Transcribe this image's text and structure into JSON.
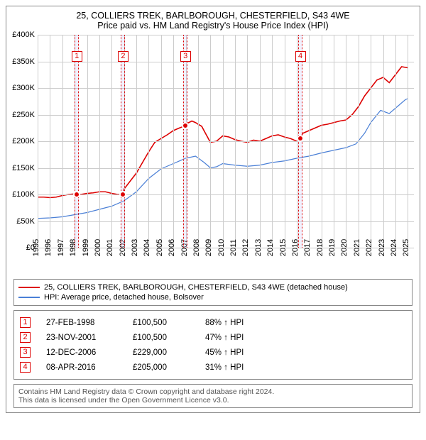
{
  "title": {
    "line1": "25, COLLIERS TREK, BARLBOROUGH, CHESTERFIELD, S43 4WE",
    "line2": "Price paid vs. HM Land Registry's House Price Index (HPI)",
    "fontsize": 12.5
  },
  "chart": {
    "type": "line",
    "background_color": "#ffffff",
    "grid_color": "#cccccc",
    "x": {
      "min": 1995,
      "max": 2025.5,
      "ticks": [
        1995,
        1996,
        1997,
        1998,
        1999,
        2000,
        2001,
        2002,
        2003,
        2004,
        2005,
        2006,
        2007,
        2008,
        2009,
        2010,
        2011,
        2012,
        2013,
        2014,
        2015,
        2016,
        2017,
        2018,
        2019,
        2020,
        2021,
        2022,
        2023,
        2024,
        2025
      ],
      "label_fontsize": 11
    },
    "y": {
      "min": 0,
      "max": 400000,
      "ticks": [
        0,
        50000,
        100000,
        150000,
        200000,
        250000,
        300000,
        350000,
        400000
      ],
      "tick_labels": [
        "£0",
        "£50K",
        "£100K",
        "£150K",
        "£200K",
        "£250K",
        "£300K",
        "£350K",
        "£400K"
      ],
      "label_fontsize": 11
    },
    "series": [
      {
        "name": "25, COLLIERS TREK, BARLBOROUGH, CHESTERFIELD, S43 4WE (detached house)",
        "color": "#dd0000",
        "line_width": 1.6,
        "points": [
          [
            1995.0,
            95000
          ],
          [
            1995.5,
            95000
          ],
          [
            1996.0,
            94000
          ],
          [
            1996.5,
            95000
          ],
          [
            1997.0,
            98000
          ],
          [
            1997.5,
            100000
          ],
          [
            1998.0,
            101000
          ],
          [
            1998.15,
            100500
          ],
          [
            1998.5,
            100000
          ],
          [
            1999.0,
            102000
          ],
          [
            1999.5,
            103000
          ],
          [
            2000.0,
            105000
          ],
          [
            2000.5,
            105000
          ],
          [
            2001.0,
            102000
          ],
          [
            2001.5,
            100000
          ],
          [
            2001.9,
            100500
          ],
          [
            2002.0,
            110000
          ],
          [
            2002.5,
            125000
          ],
          [
            2003.0,
            140000
          ],
          [
            2003.5,
            160000
          ],
          [
            2004.0,
            180000
          ],
          [
            2004.5,
            198000
          ],
          [
            2005.0,
            205000
          ],
          [
            2005.5,
            212000
          ],
          [
            2006.0,
            220000
          ],
          [
            2006.5,
            225000
          ],
          [
            2006.95,
            229000
          ],
          [
            2007.0,
            232000
          ],
          [
            2007.5,
            238000
          ],
          [
            2007.8,
            235000
          ],
          [
            2008.0,
            232000
          ],
          [
            2008.3,
            228000
          ],
          [
            2008.6,
            215000
          ],
          [
            2009.0,
            198000
          ],
          [
            2009.5,
            200000
          ],
          [
            2010.0,
            210000
          ],
          [
            2010.5,
            208000
          ],
          [
            2011.0,
            203000
          ],
          [
            2011.5,
            200000
          ],
          [
            2012.0,
            198000
          ],
          [
            2012.5,
            202000
          ],
          [
            2013.0,
            200000
          ],
          [
            2013.5,
            205000
          ],
          [
            2014.0,
            210000
          ],
          [
            2014.5,
            212000
          ],
          [
            2015.0,
            208000
          ],
          [
            2015.5,
            205000
          ],
          [
            2016.0,
            200000
          ],
          [
            2016.27,
            205000
          ],
          [
            2016.5,
            215000
          ],
          [
            2017.0,
            220000
          ],
          [
            2017.5,
            225000
          ],
          [
            2018.0,
            230000
          ],
          [
            2018.5,
            232000
          ],
          [
            2019.0,
            235000
          ],
          [
            2019.5,
            238000
          ],
          [
            2020.0,
            240000
          ],
          [
            2020.5,
            250000
          ],
          [
            2021.0,
            265000
          ],
          [
            2021.5,
            285000
          ],
          [
            2022.0,
            300000
          ],
          [
            2022.5,
            315000
          ],
          [
            2023.0,
            320000
          ],
          [
            2023.5,
            310000
          ],
          [
            2024.0,
            325000
          ],
          [
            2024.5,
            340000
          ],
          [
            2025.0,
            338000
          ]
        ]
      },
      {
        "name": "HPI: Average price, detached house, Bolsover",
        "color": "#4a7fd6",
        "line_width": 1.2,
        "points": [
          [
            1995.0,
            55000
          ],
          [
            1996.0,
            56000
          ],
          [
            1997.0,
            58000
          ],
          [
            1998.0,
            62000
          ],
          [
            1999.0,
            66000
          ],
          [
            2000.0,
            72000
          ],
          [
            2001.0,
            78000
          ],
          [
            2002.0,
            88000
          ],
          [
            2003.0,
            105000
          ],
          [
            2004.0,
            130000
          ],
          [
            2005.0,
            148000
          ],
          [
            2006.0,
            158000
          ],
          [
            2007.0,
            168000
          ],
          [
            2007.8,
            172000
          ],
          [
            2008.5,
            160000
          ],
          [
            2009.0,
            150000
          ],
          [
            2009.5,
            152000
          ],
          [
            2010.0,
            158000
          ],
          [
            2011.0,
            155000
          ],
          [
            2012.0,
            153000
          ],
          [
            2013.0,
            155000
          ],
          [
            2014.0,
            160000
          ],
          [
            2015.0,
            163000
          ],
          [
            2016.0,
            168000
          ],
          [
            2017.0,
            172000
          ],
          [
            2018.0,
            178000
          ],
          [
            2019.0,
            183000
          ],
          [
            2020.0,
            188000
          ],
          [
            2020.8,
            195000
          ],
          [
            2021.5,
            215000
          ],
          [
            2022.0,
            235000
          ],
          [
            2022.8,
            258000
          ],
          [
            2023.5,
            252000
          ],
          [
            2024.0,
            262000
          ],
          [
            2024.8,
            278000
          ],
          [
            2025.0,
            280000
          ]
        ]
      }
    ],
    "sale_markers": [
      {
        "n": "1",
        "x": 1998.15,
        "y": 100500,
        "color": "#dd0000"
      },
      {
        "n": "2",
        "x": 2001.9,
        "y": 100500,
        "color": "#dd0000"
      },
      {
        "n": "3",
        "x": 2006.95,
        "y": 229000,
        "color": "#dd0000"
      },
      {
        "n": "4",
        "x": 2016.27,
        "y": 205000,
        "color": "#dd0000"
      }
    ],
    "marker_band_color": "#dd0000",
    "marker_box_top_y": 360000
  },
  "legend": {
    "items": [
      {
        "color": "#dd0000",
        "label": "25, COLLIERS TREK, BARLBOROUGH, CHESTERFIELD, S43 4WE (detached house)"
      },
      {
        "color": "#4a7fd6",
        "label": "HPI: Average price, detached house, Bolsover"
      }
    ]
  },
  "sales_table": {
    "border_color": "#dd0000",
    "rows": [
      {
        "n": "1",
        "date": "27-FEB-1998",
        "price": "£100,500",
        "pct": "88% ↑ HPI"
      },
      {
        "n": "2",
        "date": "23-NOV-2001",
        "price": "£100,500",
        "pct": "47% ↑ HPI"
      },
      {
        "n": "3",
        "date": "12-DEC-2006",
        "price": "£229,000",
        "pct": "45% ↑ HPI"
      },
      {
        "n": "4",
        "date": "08-APR-2016",
        "price": "£205,000",
        "pct": "31% ↑ HPI"
      }
    ]
  },
  "footer": {
    "line1": "Contains HM Land Registry data © Crown copyright and database right 2024.",
    "line2": "This data is licensed under the Open Government Licence v3.0."
  }
}
